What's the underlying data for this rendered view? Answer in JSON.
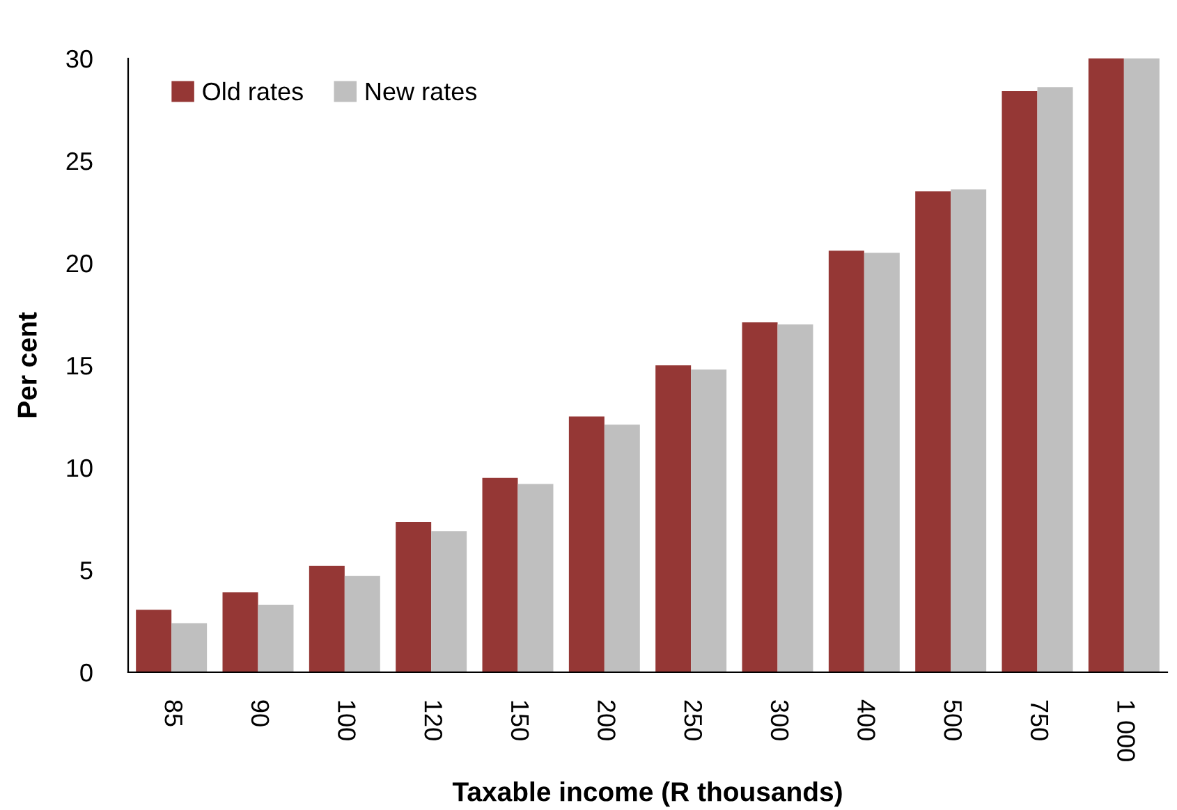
{
  "chart_data": {
    "type": "bar",
    "xlabel": "Taxable income (R thousands)",
    "ylabel": "Per cent",
    "categories": [
      "85",
      "90",
      "100",
      "120",
      "150",
      "200",
      "250",
      "300",
      "400",
      "500",
      "750",
      "1 000"
    ],
    "series": [
      {
        "name": "Old rates",
        "color": "#953735",
        "values": [
          3.05,
          3.9,
          5.2,
          7.35,
          9.5,
          12.5,
          15.0,
          17.1,
          20.6,
          23.5,
          28.4,
          30
        ]
      },
      {
        "name": "New rates",
        "color": "#bfbfbf",
        "values": [
          2.4,
          3.3,
          4.7,
          6.9,
          9.2,
          12.1,
          14.8,
          17.0,
          20.5,
          23.6,
          28.6,
          30
        ]
      }
    ],
    "ylim": [
      0,
      30
    ],
    "yticks": [
      0,
      5,
      10,
      15,
      20,
      25,
      30
    ],
    "grid": false,
    "legend": "top left"
  }
}
